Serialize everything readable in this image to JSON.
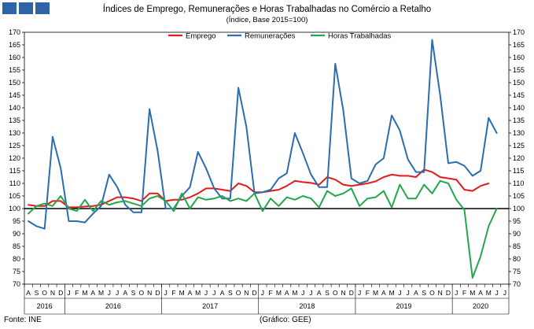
{
  "chart_data": {
    "type": "line",
    "title": "Índices de Emprego, Remunerações e Horas Trabalhadas no Comércio a Retalho",
    "subtitle": "(Índice, Base 2015=100)",
    "ylim": [
      70,
      170
    ],
    "ytick_step": 5,
    "y_axis_sides": [
      "left",
      "right"
    ],
    "reference_line": 100,
    "grid": false,
    "legend_position": "top",
    "month_ticks": [
      "A",
      "S",
      "O",
      "N",
      "D",
      "J",
      "F",
      "M",
      "A",
      "M",
      "J",
      "J",
      "A",
      "S",
      "O",
      "N",
      "D",
      "J",
      "F",
      "M",
      "A",
      "M",
      "J",
      "J",
      "A",
      "S",
      "O",
      "N",
      "D",
      "J",
      "F",
      "M",
      "A",
      "M",
      "J",
      "J",
      "A",
      "S",
      "O",
      "N",
      "D",
      "J",
      "F",
      "M",
      "A",
      "M",
      "J",
      "J",
      "A",
      "S",
      "O",
      "N",
      "D",
      "J",
      "F",
      "M",
      "A",
      "M",
      "J",
      "J"
    ],
    "year_groups": [
      {
        "label": "2016",
        "start": 0,
        "end": 4
      },
      {
        "label": "2016",
        "start": 5,
        "end": 16
      },
      {
        "label": "2017",
        "start": 17,
        "end": 28
      },
      {
        "label": "2018",
        "start": 29,
        "end": 40
      },
      {
        "label": "2019",
        "start": 41,
        "end": 52
      },
      {
        "label": "2020",
        "start": 53,
        "end": 59
      }
    ],
    "series": [
      {
        "name": "Emprego",
        "color": "#e31b1b",
        "values": [
          101.5,
          101,
          101,
          103,
          103,
          100.5,
          100.5,
          100.8,
          101,
          101.5,
          103,
          104.5,
          104.5,
          104,
          103,
          106,
          106,
          103,
          103.5,
          103.5,
          104.5,
          106,
          108,
          108,
          107.5,
          107,
          110,
          109,
          106.5,
          106.5,
          107,
          107.5,
          109,
          111,
          110.5,
          110.2,
          109.5,
          112.5,
          111.5,
          109.5,
          109,
          109.5,
          110,
          110.8,
          112.5,
          113.5,
          113,
          113,
          112.5,
          115.5,
          114.5,
          112.5,
          112,
          111.5,
          107.5,
          107,
          109,
          110
        ]
      },
      {
        "name": "Remunerações",
        "color": "#2a6db0",
        "values": [
          95,
          93,
          92,
          128.5,
          116,
          95,
          95,
          94.5,
          98,
          101,
          113.5,
          108.5,
          101.5,
          98.5,
          98.5,
          139.5,
          123,
          100,
          100,
          105,
          108.5,
          122.5,
          116,
          108,
          104,
          104,
          148,
          132.5,
          106,
          106.5,
          107.5,
          112,
          114,
          130,
          122,
          113.5,
          108.5,
          108.5,
          157.5,
          139,
          112,
          110,
          111,
          117.5,
          120,
          137,
          131,
          119.5,
          114.5,
          114.5,
          167,
          145,
          118,
          118.5,
          117,
          113,
          115,
          136,
          130
        ]
      },
      {
        "name": "Horas Trabalhadas",
        "color": "#22a84a",
        "values": [
          98,
          101,
          102,
          101,
          105,
          100,
          99,
          103.5,
          99,
          103,
          101.5,
          102.5,
          103,
          102,
          101,
          104,
          105,
          103,
          99,
          106,
          100,
          104.5,
          103.5,
          104,
          105,
          103,
          104,
          103,
          106,
          99,
          104,
          101,
          104.5,
          103.5,
          105,
          104,
          100.5,
          107,
          105,
          106,
          108,
          101,
          104,
          104.5,
          107,
          100.5,
          109.5,
          104,
          104,
          109.5,
          106,
          111,
          110,
          103.5,
          99.5,
          72.5,
          81,
          93,
          100
        ]
      }
    ]
  },
  "footer": {
    "source": "Fonte: INE",
    "credit": "(Gráfico: GEE)"
  }
}
